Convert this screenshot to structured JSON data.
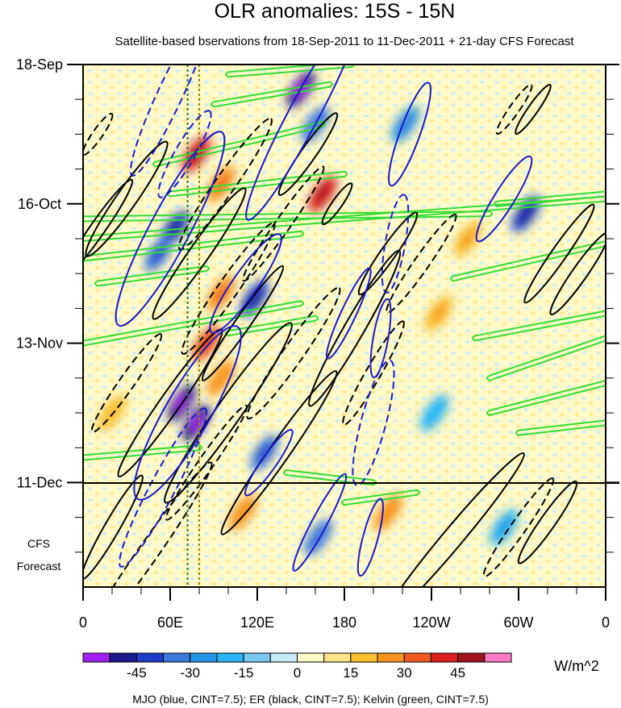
{
  "chart_data": {
    "type": "heatmap",
    "title": "OLR anomalies: 15S - 15N",
    "subtitle": "Satellite-based bservations from 18-Sep-2011 to 11-Dec-2011 + 21-day CFS Forecast",
    "x_ticks": [
      "0",
      "60E",
      "120E",
      "180",
      "120W",
      "60W",
      "0"
    ],
    "y_ticks": [
      "18-Sep",
      "16-Oct",
      "13-Nov",
      "11-Dec"
    ],
    "forecast_label": [
      "CFS",
      "Forecast"
    ],
    "colorbar": {
      "units": "W/m^2",
      "tick_labels": [
        "-45",
        "-30",
        "-15",
        "0",
        "15",
        "30",
        "45"
      ],
      "levels": [
        -52.5,
        -45,
        -37.5,
        -30,
        -22.5,
        -15,
        -7.5,
        0,
        7.5,
        15,
        22.5,
        30,
        37.5,
        45,
        52.5
      ],
      "colors": [
        "#a020f0",
        "#1a1a8c",
        "#1f3cc8",
        "#3c78dc",
        "#2196e6",
        "#28b4f5",
        "#78c8f0",
        "#c8ebfa",
        "#fffbc8",
        "#fde68a",
        "#fbc02d",
        "#f7941d",
        "#f05a1e",
        "#dc1e1e",
        "#a0141e",
        "#ff7ac0"
      ]
    },
    "contour_legend": "MJO (blue, CINT=7.5); ER (black, CINT=7.5); Kelvin (green, CINT=7.5)",
    "series_colors": {
      "MJO": "#1a1acc",
      "ER": "#000000",
      "Kelvin": "#33dd33"
    },
    "reference_lines": {
      "longitude_deg": [
        72,
        80
      ]
    },
    "time_range": {
      "start": "18-Sep-2011",
      "end_observed": "11-Dec-2011",
      "forecast_days": 21
    },
    "anomaly_features": [
      {
        "lon": 150,
        "day": 5,
        "value": -45
      },
      {
        "lon": 160,
        "day": 12,
        "value": -30
      },
      {
        "lon": 78,
        "day": 18,
        "value": 40
      },
      {
        "lon": 95,
        "day": 24,
        "value": 30
      },
      {
        "lon": 165,
        "day": 26,
        "value": 40
      },
      {
        "lon": 63,
        "day": 33,
        "value": -40
      },
      {
        "lon": 52,
        "day": 38,
        "value": -35
      },
      {
        "lon": 118,
        "day": 47,
        "value": -40
      },
      {
        "lon": 95,
        "day": 46,
        "value": 30
      },
      {
        "lon": 85,
        "day": 56,
        "value": 35
      },
      {
        "lon": 68,
        "day": 68,
        "value": -52
      },
      {
        "lon": 78,
        "day": 72,
        "value": -45
      },
      {
        "lon": 95,
        "day": 63,
        "value": 25
      },
      {
        "lon": 125,
        "day": 78,
        "value": -35
      },
      {
        "lon": 305,
        "day": 30,
        "value": -40
      },
      {
        "lon": 222,
        "day": 12,
        "value": -25
      },
      {
        "lon": 265,
        "day": 35,
        "value": 20
      },
      {
        "lon": 242,
        "day": 70,
        "value": -18
      },
      {
        "lon": 210,
        "day": 90,
        "value": 25
      },
      {
        "lon": 162,
        "day": 95,
        "value": -30
      },
      {
        "lon": 290,
        "day": 93,
        "value": -20
      },
      {
        "lon": 20,
        "day": 70,
        "value": 18
      },
      {
        "lon": 245,
        "day": 50,
        "value": 20
      },
      {
        "lon": 110,
        "day": 90,
        "value": 25
      }
    ],
    "mjo_contours": [
      {
        "lon": 152,
        "day": 10,
        "len": 24,
        "wid": 6,
        "ang": -62,
        "dash": false
      },
      {
        "lon": 60,
        "day": 6,
        "len": 18,
        "wid": 5,
        "ang": -65,
        "dash": true
      },
      {
        "lon": 70,
        "day": 18,
        "len": 10,
        "wid": 4,
        "ang": -60,
        "dash": true
      },
      {
        "lon": 225,
        "day": 14,
        "len": 11,
        "wid": 4,
        "ang": -70,
        "dash": false
      },
      {
        "lon": 290,
        "day": 27,
        "len": 10,
        "wid": 4,
        "ang": -58,
        "dash": false
      },
      {
        "lon": 60,
        "day": 33,
        "len": 22,
        "wid": 8,
        "ang": -62,
        "dash": false
      },
      {
        "lon": 112,
        "day": 44,
        "len": 12,
        "wid": 5,
        "ang": -55,
        "dash": false
      },
      {
        "lon": 215,
        "day": 36,
        "len": 10,
        "wid": 4,
        "ang": -80,
        "dash": true
      },
      {
        "lon": 205,
        "day": 55,
        "len": 8,
        "wid": 3,
        "ang": -80,
        "dash": false
      },
      {
        "lon": 183,
        "day": 50,
        "len": 10,
        "wid": 3,
        "ang": -65,
        "dash": false
      },
      {
        "lon": 72,
        "day": 70,
        "len": 20,
        "wid": 9,
        "ang": -60,
        "dash": false
      },
      {
        "lon": 200,
        "day": 72,
        "len": 13,
        "wid": 5,
        "ang": -75,
        "dash": true
      },
      {
        "lon": 55,
        "day": 85,
        "len": 18,
        "wid": 5,
        "ang": -62,
        "dash": true
      },
      {
        "lon": 163,
        "day": 92,
        "len": 11,
        "wid": 3,
        "ang": -62,
        "dash": false
      },
      {
        "lon": 198,
        "day": 95,
        "len": 8,
        "wid": 3,
        "ang": -75,
        "dash": false
      },
      {
        "lon": 128,
        "day": 80,
        "len": 8,
        "wid": 3,
        "ang": -55,
        "dash": false
      }
    ],
    "er_contours": [
      {
        "lon": 30,
        "day": 27,
        "len": 14,
        "wid": 4,
        "ang": -55,
        "dash": false
      },
      {
        "lon": 10,
        "day": 33,
        "len": 12,
        "wid": 3,
        "ang": -55,
        "dash": false
      },
      {
        "lon": 80,
        "day": 38,
        "len": 16,
        "wid": 4,
        "ang": -55,
        "dash": false
      },
      {
        "lon": 98,
        "day": 24,
        "len": 16,
        "wid": 4,
        "ang": -55,
        "dash": true
      },
      {
        "lon": 138,
        "day": 32,
        "len": 14,
        "wid": 3,
        "ang": -55,
        "dash": true
      },
      {
        "lon": 100,
        "day": 45,
        "len": 16,
        "wid": 4,
        "ang": -55,
        "dash": true
      },
      {
        "lon": 110,
        "day": 52,
        "len": 14,
        "wid": 3,
        "ang": -55,
        "dash": false
      },
      {
        "lon": 145,
        "day": 58,
        "len": 16,
        "wid": 4,
        "ang": -55,
        "dash": true
      },
      {
        "lon": 187,
        "day": 53,
        "len": 18,
        "wid": 4,
        "ang": -60,
        "dash": false
      },
      {
        "lon": 200,
        "day": 62,
        "len": 12,
        "wid": 3,
        "ang": -60,
        "dash": true
      },
      {
        "lon": 233,
        "day": 40,
        "len": 12,
        "wid": 3,
        "ang": -55,
        "dash": true
      },
      {
        "lon": 210,
        "day": 38,
        "len": 10,
        "wid": 3,
        "ang": -55,
        "dash": false
      },
      {
        "lon": 328,
        "day": 38,
        "len": 12,
        "wid": 3,
        "ang": -55,
        "dash": false
      },
      {
        "lon": 342,
        "day": 42,
        "len": 10,
        "wid": 3,
        "ang": -55,
        "dash": false
      },
      {
        "lon": 100,
        "day": 70,
        "len": 22,
        "wid": 5,
        "ang": -55,
        "dash": false
      },
      {
        "lon": 60,
        "day": 68,
        "len": 18,
        "wid": 4,
        "ang": -55,
        "dash": false
      },
      {
        "lon": 30,
        "day": 64,
        "len": 12,
        "wid": 3,
        "ang": -55,
        "dash": true
      },
      {
        "lon": 135,
        "day": 78,
        "len": 20,
        "wid": 4,
        "ang": -55,
        "dash": false
      },
      {
        "lon": 85,
        "day": 80,
        "len": 14,
        "wid": 3,
        "ang": -55,
        "dash": true
      },
      {
        "lon": 20,
        "day": 93,
        "len": 12,
        "wid": 3,
        "ang": -60,
        "dash": false
      },
      {
        "lon": 45,
        "day": 98,
        "len": 22,
        "wid": 4,
        "ang": -55,
        "dash": true
      },
      {
        "lon": 255,
        "day": 95,
        "len": 22,
        "wid": 4,
        "ang": -50,
        "dash": false
      },
      {
        "lon": 320,
        "day": 92,
        "len": 10,
        "wid": 3,
        "ang": -55,
        "dash": false
      },
      {
        "lon": 300,
        "day": 93,
        "len": 12,
        "wid": 3,
        "ang": -55,
        "dash": true
      },
      {
        "lon": 155,
        "day": 18,
        "len": 10,
        "wid": 3,
        "ang": -55,
        "dash": false
      },
      {
        "lon": 310,
        "day": 9,
        "len": 6,
        "wid": 2,
        "ang": -55,
        "dash": false
      },
      {
        "lon": 297,
        "day": 9,
        "len": 6,
        "wid": 2,
        "ang": -55,
        "dash": true
      },
      {
        "lon": 10,
        "day": 14,
        "len": 5,
        "wid": 2,
        "ang": -55,
        "dash": true
      },
      {
        "lon": 175,
        "day": 28,
        "len": 5,
        "wid": 2,
        "ang": -55,
        "dash": false
      }
    ],
    "kelvin_bands": [
      {
        "lon1": 100,
        "day1": 2,
        "lon2": 185,
        "day2": 0
      },
      {
        "lon1": 90,
        "day1": 8,
        "lon2": 170,
        "day2": 4
      },
      {
        "lon1": 50,
        "day1": 20,
        "lon2": 165,
        "day2": 12
      },
      {
        "lon1": 60,
        "day1": 26,
        "lon2": 180,
        "day2": 22
      },
      {
        "lon1": 0,
        "day1": 31,
        "lon2": 280,
        "day2": 30
      },
      {
        "lon1": 0,
        "day1": 35,
        "lon2": 360,
        "day2": 27
      },
      {
        "lon1": 0,
        "day1": 39,
        "lon2": 150,
        "day2": 34
      },
      {
        "lon1": 10,
        "day1": 44,
        "lon2": 85,
        "day2": 41
      },
      {
        "lon1": 0,
        "day1": 56,
        "lon2": 150,
        "day2": 48
      },
      {
        "lon1": 100,
        "day1": 54,
        "lon2": 160,
        "day2": 51
      },
      {
        "lon1": 285,
        "day1": 28,
        "lon2": 360,
        "day2": 26
      },
      {
        "lon1": 255,
        "day1": 43,
        "lon2": 360,
        "day2": 36
      },
      {
        "lon1": 270,
        "day1": 55,
        "lon2": 360,
        "day2": 50
      },
      {
        "lon1": 280,
        "day1": 63,
        "lon2": 360,
        "day2": 55
      },
      {
        "lon1": 280,
        "day1": 70,
        "lon2": 360,
        "day2": 64
      },
      {
        "lon1": 300,
        "day1": 74,
        "lon2": 360,
        "day2": 72
      },
      {
        "lon1": 0,
        "day1": 79,
        "lon2": 80,
        "day2": 77
      },
      {
        "lon1": 140,
        "day1": 82,
        "lon2": 200,
        "day2": 84
      },
      {
        "lon1": 180,
        "day1": 88,
        "lon2": 230,
        "day2": 86
      }
    ]
  }
}
